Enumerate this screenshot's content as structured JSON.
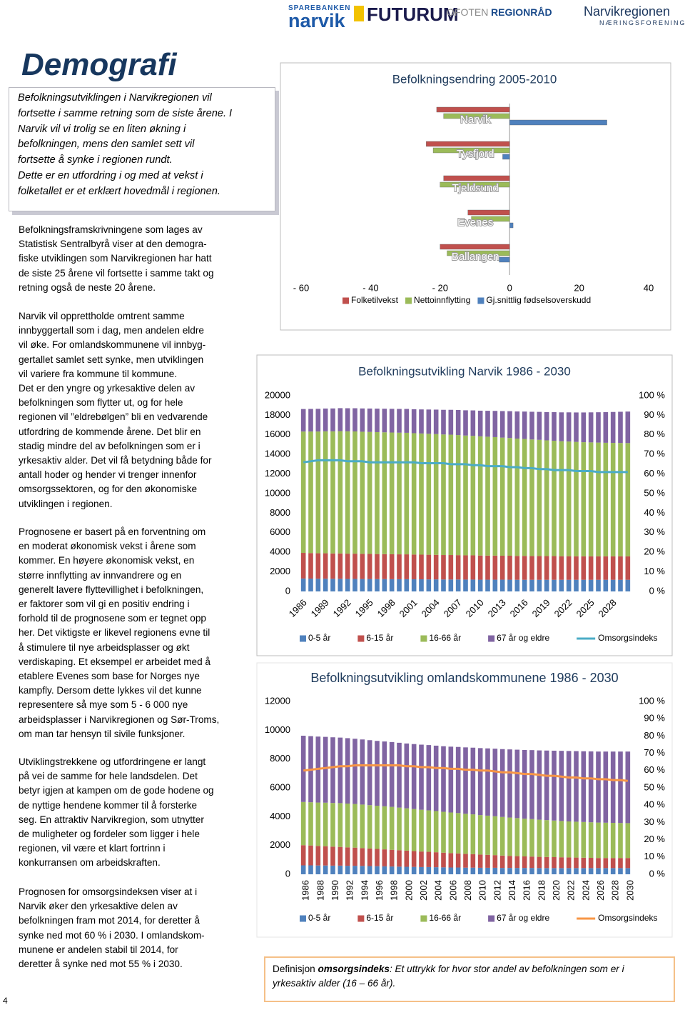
{
  "header": {
    "logos": [
      "SPAREBANKEN",
      "narvik",
      "FUTURUM",
      "OFOTEN",
      "REGIONRÅD",
      "Narvikregionen",
      "NÆRINGSFORENING"
    ]
  },
  "title": "Demografi",
  "callout": [
    "Befolkningsutviklingen i Narvikregionen vil",
    "fortsette i samme retning som de siste årene. I",
    "Narvik vil vi trolig se en liten økning i",
    "befolkningen, mens den samlet sett vil",
    "fortsette å synke i regionen rundt.",
    "Dette er en utfordring i og med at vekst i",
    "folketallet er et erklært hovedmål i regionen."
  ],
  "paragraphs": [
    [
      "Befolkningsframskrivningene som lages av",
      "Statistisk Sentralbyrå viser at den demogra-",
      "fiske utviklingen som Narvikregionen har hatt",
      "de siste 25 årene vil fortsette i samme takt og",
      "retning også de neste 20 årene."
    ],
    [
      "Narvik vil opprettholde omtrent samme",
      "innbyggertall som i dag, men andelen eldre",
      "vil øke. For omlandskommunene vil innbyg-",
      "gertallet samlet sett synke, men utviklingen",
      "vil variere fra kommune til kommune.",
      "Det er den yngre og yrkesaktive delen av",
      "befolkningen som flytter ut, og for hele",
      "regionen vil ”eldrebølgen” bli en vedvarende",
      "utfordring de kommende årene. Det blir en",
      "stadig mindre del av befolkningen som er i",
      "yrkesaktiv alder. Det vil få betydning både for",
      "antall hoder og hender vi trenger innenfor",
      "omsorgssektoren, og for den økonomiske",
      "utviklingen i regionen."
    ],
    [
      "Prognosene er basert på en forventning om",
      "en moderat økonomisk vekst i årene som",
      "kommer. En høyere økonomisk vekst, en",
      "større innflytting av innvandrere og en",
      "generelt lavere flyttevillighet i befolkningen,",
      "er faktorer som vil gi en positiv endring i",
      "forhold til de prognosene som er tegnet opp",
      "her. Det viktigste er likevel regionens evne til",
      "å stimulere til nye arbeidsplasser og økt",
      "verdiskaping. Et eksempel er arbeidet med å",
      "etablere Evenes som base for Norges nye",
      "kampfly. Dersom dette lykkes vil det kunne",
      "representere så mye som 5 - 6 000 nye",
      "arbeidsplasser i Narvikregionen og Sør-Troms,",
      "om man tar hensyn til sivile funksjoner."
    ],
    [
      "Utviklingstrekkene og utfordringene er langt",
      "på vei de samme for hele landsdelen. Det",
      "betyr igjen at kampen om de gode hodene og",
      "de nyttige hendene kommer til å forsterke",
      "seg. En attraktiv Narvikregion, som utnytter",
      "de muligheter og fordeler som ligger i hele",
      "regionen, vil være et klart fortrinn i",
      "konkurransen om arbeidskraften."
    ],
    [
      "Prognosen for omsorgsindeksen viser at i",
      "Narvik øker den yrkesaktive delen av",
      "befolkningen fram mot 2014, for deretter å",
      "synke ned mot 60 % i 2030. I omlandskom-",
      "munene er andelen stabil til 2014, for",
      "deretter å synke ned mot 55 % i 2030."
    ]
  ],
  "chart_data": [
    {
      "type": "bar",
      "orientation": "horizontal",
      "title": "Befolkningsendring 2005-2010",
      "categories": [
        "Narvik",
        "Tysfjord",
        "Tjeldsund",
        "Evenes",
        "Ballangen"
      ],
      "series": [
        {
          "name": "Folketilvekst",
          "color": "#c0504d",
          "values": [
            -21,
            -24,
            -19,
            -12,
            -20
          ]
        },
        {
          "name": "Nettoinnflytting",
          "color": "#9bbb59",
          "values": [
            -19,
            -22,
            -20,
            -11,
            -18
          ]
        },
        {
          "name": "Gj.snittlig fødselsoverskudd",
          "color": "#4f81bd",
          "values": [
            28,
            -2,
            0,
            1,
            -3
          ]
        }
      ],
      "xlim": [
        -60,
        40
      ],
      "xticks": [
        {
          "value": -60,
          "label": "- 60"
        },
        {
          "value": -40,
          "label": "- 40"
        },
        {
          "value": -20,
          "label": "- 20"
        },
        0,
        20,
        40
      ],
      "grid": false
    },
    {
      "type": "bar",
      "stacked": true,
      "title": "Befolkningsutvikling Narvik 1986 - 2030",
      "categories": [
        "1986",
        null,
        null,
        "1989",
        null,
        null,
        "1992",
        null,
        null,
        "1995",
        null,
        null,
        "1998",
        null,
        null,
        "2001",
        null,
        null,
        "2004",
        null,
        null,
        "2007",
        null,
        null,
        "2010",
        null,
        null,
        "2013",
        null,
        null,
        "2016",
        null,
        null,
        "2019",
        null,
        null,
        "2022",
        null,
        null,
        "2025",
        null,
        null,
        "2028",
        null,
        null
      ],
      "series": [
        {
          "name": "0-5 år",
          "color": "#4f81bd",
          "values": [
            1320,
            1310,
            1300,
            1300,
            1290,
            1290,
            1280,
            1280,
            1270,
            1270,
            1260,
            1260,
            1250,
            1250,
            1250,
            1240,
            1240,
            1230,
            1230,
            1220,
            1220,
            1220,
            1210,
            1210,
            1200,
            1200,
            1200,
            1200,
            1200,
            1190,
            1190,
            1190,
            1190,
            1190,
            1190,
            1190,
            1190,
            1190,
            1190,
            1190,
            1190,
            1190,
            1190,
            1190,
            1190
          ]
        },
        {
          "name": "6-15 år",
          "color": "#c0504d",
          "values": [
            2620,
            2610,
            2600,
            2600,
            2590,
            2590,
            2580,
            2580,
            2570,
            2560,
            2560,
            2550,
            2550,
            2540,
            2540,
            2530,
            2520,
            2520,
            2510,
            2500,
            2500,
            2490,
            2480,
            2480,
            2470,
            2460,
            2460,
            2450,
            2450,
            2440,
            2440,
            2430,
            2430,
            2420,
            2420,
            2410,
            2410,
            2400,
            2400,
            2400,
            2400,
            2400,
            2400,
            2400,
            2400
          ]
        },
        {
          "name": "16-66 år",
          "color": "#9bbb59",
          "values": [
            12400,
            12420,
            12440,
            12460,
            12480,
            12500,
            12500,
            12490,
            12480,
            12470,
            12460,
            12450,
            12440,
            12430,
            12420,
            12400,
            12380,
            12360,
            12340,
            12320,
            12300,
            12270,
            12240,
            12210,
            12180,
            12150,
            12110,
            12070,
            12030,
            11990,
            11950,
            11910,
            11870,
            11830,
            11790,
            11750,
            11720,
            11690,
            11660,
            11640,
            11620,
            11600,
            11590,
            11580,
            11570
          ]
        },
        {
          "name": "67 år og eldre",
          "color": "#8064a2",
          "values": [
            2300,
            2310,
            2320,
            2330,
            2340,
            2350,
            2360,
            2370,
            2380,
            2390,
            2400,
            2410,
            2420,
            2430,
            2440,
            2450,
            2460,
            2480,
            2500,
            2520,
            2540,
            2560,
            2580,
            2600,
            2620,
            2650,
            2680,
            2710,
            2740,
            2770,
            2800,
            2830,
            2860,
            2890,
            2920,
            2950,
            2980,
            3010,
            3040,
            3070,
            3100,
            3130,
            3160,
            3190,
            3220
          ]
        },
        {
          "name": "Omsorgsindeks",
          "color": "#4bacc6",
          "type": "line",
          "axis": "y2",
          "values": [
            66,
            66.5,
            67,
            67,
            67,
            67,
            66.5,
            66.5,
            66.5,
            66,
            66,
            66,
            66,
            66,
            66,
            66,
            65.5,
            65.5,
            65.5,
            65.5,
            65,
            65,
            65,
            64.5,
            64.5,
            64,
            64,
            64,
            63.5,
            63.5,
            63,
            63,
            62.5,
            62.5,
            62,
            62,
            62,
            61.5,
            61.5,
            61.5,
            61,
            61,
            61,
            61,
            61
          ]
        }
      ],
      "ylim": [
        0,
        20000
      ],
      "yticks": [
        0,
        2000,
        4000,
        6000,
        8000,
        10000,
        12000,
        14000,
        16000,
        18000,
        20000
      ],
      "y2lim": [
        0,
        100
      ],
      "y2ticks": [
        {
          "value": 0,
          "label": "0 %"
        },
        {
          "value": 10,
          "label": "10 %"
        },
        {
          "value": 20,
          "label": "20 %"
        },
        {
          "value": 30,
          "label": "30 %"
        },
        {
          "value": 40,
          "label": "40 %"
        },
        {
          "value": 50,
          "label": "50 %"
        },
        {
          "value": 60,
          "label": "60 %"
        },
        {
          "value": 70,
          "label": "70 %"
        },
        {
          "value": 80,
          "label": "80 %"
        },
        {
          "value": 90,
          "label": "90 %"
        },
        {
          "value": 100,
          "label": "100 %"
        }
      ],
      "grid": false
    },
    {
      "type": "bar",
      "stacked": true,
      "title": "Befolkningsutvikling omlandskommunene 1986 - 2030",
      "categories": [
        "1986",
        null,
        "1988",
        null,
        "1990",
        null,
        "1992",
        null,
        "1994",
        null,
        "1996",
        null,
        "1998",
        null,
        "2000",
        null,
        "2002",
        null,
        "2004",
        null,
        "2006",
        null,
        "2008",
        null,
        "2010",
        null,
        "2012",
        null,
        "2014",
        null,
        "2016",
        null,
        "2018",
        null,
        "2020",
        null,
        "2022",
        null,
        "2024",
        null,
        "2026",
        null,
        "2028",
        null,
        "2030"
      ],
      "series": [
        {
          "name": "0-5 år",
          "color": "#4f81bd",
          "values": [
            620,
            620,
            610,
            610,
            600,
            600,
            590,
            590,
            580,
            570,
            560,
            550,
            540,
            530,
            520,
            510,
            500,
            500,
            490,
            480,
            470,
            470,
            460,
            460,
            450,
            450,
            450,
            440,
            440,
            440,
            440,
            440,
            430,
            430,
            430,
            430,
            430,
            430,
            430,
            430,
            430,
            430,
            430,
            430,
            430
          ]
        },
        {
          "name": "6-15 år",
          "color": "#c0504d",
          "values": [
            1400,
            1380,
            1360,
            1340,
            1320,
            1300,
            1280,
            1260,
            1240,
            1220,
            1200,
            1180,
            1160,
            1140,
            1120,
            1100,
            1080,
            1060,
            1040,
            1020,
            1000,
            980,
            960,
            940,
            920,
            900,
            880,
            860,
            840,
            820,
            800,
            790,
            780,
            770,
            760,
            750,
            740,
            730,
            720,
            710,
            700,
            700,
            700,
            700,
            700
          ]
        },
        {
          "name": "16-66 år",
          "color": "#9bbb59",
          "values": [
            3000,
            3000,
            3010,
            3020,
            3030,
            3040,
            3040,
            3030,
            3020,
            3010,
            3000,
            2990,
            2980,
            2960,
            2940,
            2920,
            2900,
            2880,
            2860,
            2840,
            2820,
            2800,
            2780,
            2760,
            2740,
            2720,
            2700,
            2680,
            2660,
            2640,
            2620,
            2600,
            2580,
            2560,
            2540,
            2520,
            2500,
            2490,
            2480,
            2470,
            2460,
            2450,
            2440,
            2430,
            2420
          ]
        },
        {
          "name": "67 år og eldre",
          "color": "#8064a2",
          "values": [
            4600,
            4590,
            4580,
            4570,
            4560,
            4550,
            4540,
            4530,
            4520,
            4510,
            4500,
            4500,
            4500,
            4500,
            4500,
            4510,
            4520,
            4530,
            4540,
            4550,
            4570,
            4590,
            4610,
            4630,
            4650,
            4670,
            4690,
            4710,
            4730,
            4750,
            4770,
            4790,
            4810,
            4830,
            4850,
            4870,
            4890,
            4900,
            4910,
            4920,
            4930,
            4940,
            4950,
            4960,
            4970
          ]
        },
        {
          "name": "Omsorgsindeks",
          "color": "#f79646",
          "type": "line",
          "axis": "y2",
          "values": [
            60,
            60.5,
            61,
            61.5,
            62,
            62.5,
            62.5,
            63,
            63,
            63,
            63,
            63,
            63,
            63,
            62.5,
            62.5,
            62,
            62,
            61.5,
            61.5,
            61,
            61,
            60.5,
            60.5,
            60,
            60,
            59.5,
            59,
            59,
            58.5,
            58,
            58,
            57.5,
            57,
            57,
            56.5,
            56,
            56,
            55.5,
            55.5,
            55,
            55,
            54.5,
            54.5,
            54
          ]
        }
      ],
      "ylim": [
        0,
        12000
      ],
      "yticks": [
        0,
        2000,
        4000,
        6000,
        8000,
        10000,
        12000
      ],
      "y2lim": [
        0,
        100
      ],
      "y2ticks": [
        {
          "value": 0,
          "label": "0 %"
        },
        {
          "value": 10,
          "label": "10 %"
        },
        {
          "value": 20,
          "label": "20 %"
        },
        {
          "value": 30,
          "label": "30 %"
        },
        {
          "value": 40,
          "label": "40 %"
        },
        {
          "value": 50,
          "label": "50 %"
        },
        {
          "value": 60,
          "label": "60 %"
        },
        {
          "value": 70,
          "label": "70 %"
        },
        {
          "value": 80,
          "label": "80 %"
        },
        {
          "value": 90,
          "label": "90 %"
        },
        {
          "value": 100,
          "label": "100 %"
        }
      ],
      "grid": false
    }
  ],
  "definition": {
    "label": "Definisjon",
    "term": "omsorgsindeks",
    "text": ": Et uttrykk for hvor stor andel av befolkningen som er i yrkesaktiv alder (16 – 66 år)."
  },
  "page_number": 4
}
